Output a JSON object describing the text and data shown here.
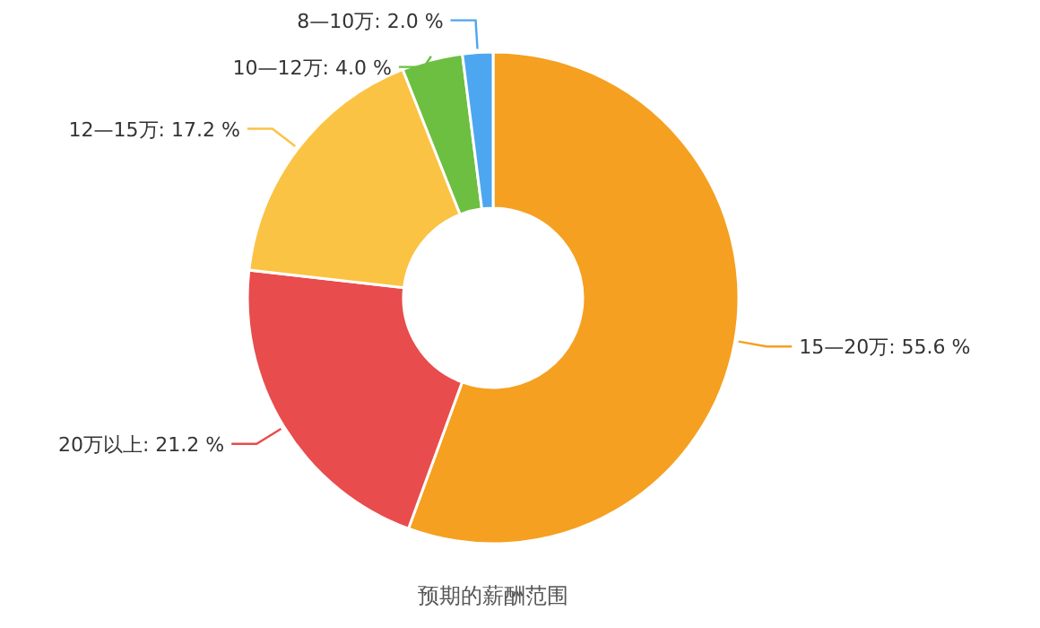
{
  "chart_data": {
    "type": "donut",
    "title": "预期的薪酬范围",
    "categories": [
      "15—20万",
      "20万以上",
      "12—15万",
      "10—12万",
      "8—10万"
    ],
    "values": [
      55.6,
      21.2,
      17.2,
      4.0,
      2.0
    ],
    "value_labels": [
      "55.6 %",
      "21.2 %",
      "17.2 %",
      "4.0 %",
      "2.0 %"
    ],
    "colors": [
      "#f5a020",
      "#e84c4c",
      "#fbc344",
      "#6cbf40",
      "#4da6f0"
    ]
  }
}
